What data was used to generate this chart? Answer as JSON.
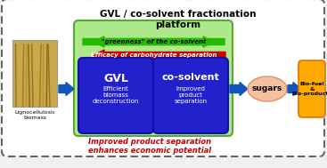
{
  "title": "GVL / co-solvent fractionation\nplatform",
  "bg_color": "#f0f0f0",
  "outer_box_facecolor": "#ffffff",
  "outer_box_edge": "#666666",
  "green_box_color": "#aee88a",
  "green_box_edge": "#55aa33",
  "blue_box_color": "#2222cc",
  "blue_box_edge": "#1111aa",
  "gvl_label": "GVL",
  "gvl_sub": "Efficient\nbiomass\ndeconstruction",
  "cosolvent_label": "co-solvent",
  "cosolvent_sub": "Improved\nproduct\nseparation",
  "sugars_label": "sugars",
  "sugars_color": "#f5c0a0",
  "sugars_edge": "#e09070",
  "biofuel_label": "Bio-fuel\n&\nBio-products",
  "biofuel_color": "#ffaa00",
  "biofuel_edge": "#dd7700",
  "biomass_label": "Lignocellulosic\nbiomass",
  "green_arrow_label": "\"greenness\" of the co-solvent",
  "red_arrow_label": "Efficacy of carbohydrate separation",
  "bottom_text": "Improved product separation\nenhances economic potential",
  "arrow_color": "#1155bb",
  "green_arrow_color": "#22bb00",
  "red_arrow_color": "#cc0000",
  "biomass_colors": [
    "#8B6914",
    "#c8a84b",
    "#9B7510",
    "#b89030",
    "#7a5a10"
  ]
}
